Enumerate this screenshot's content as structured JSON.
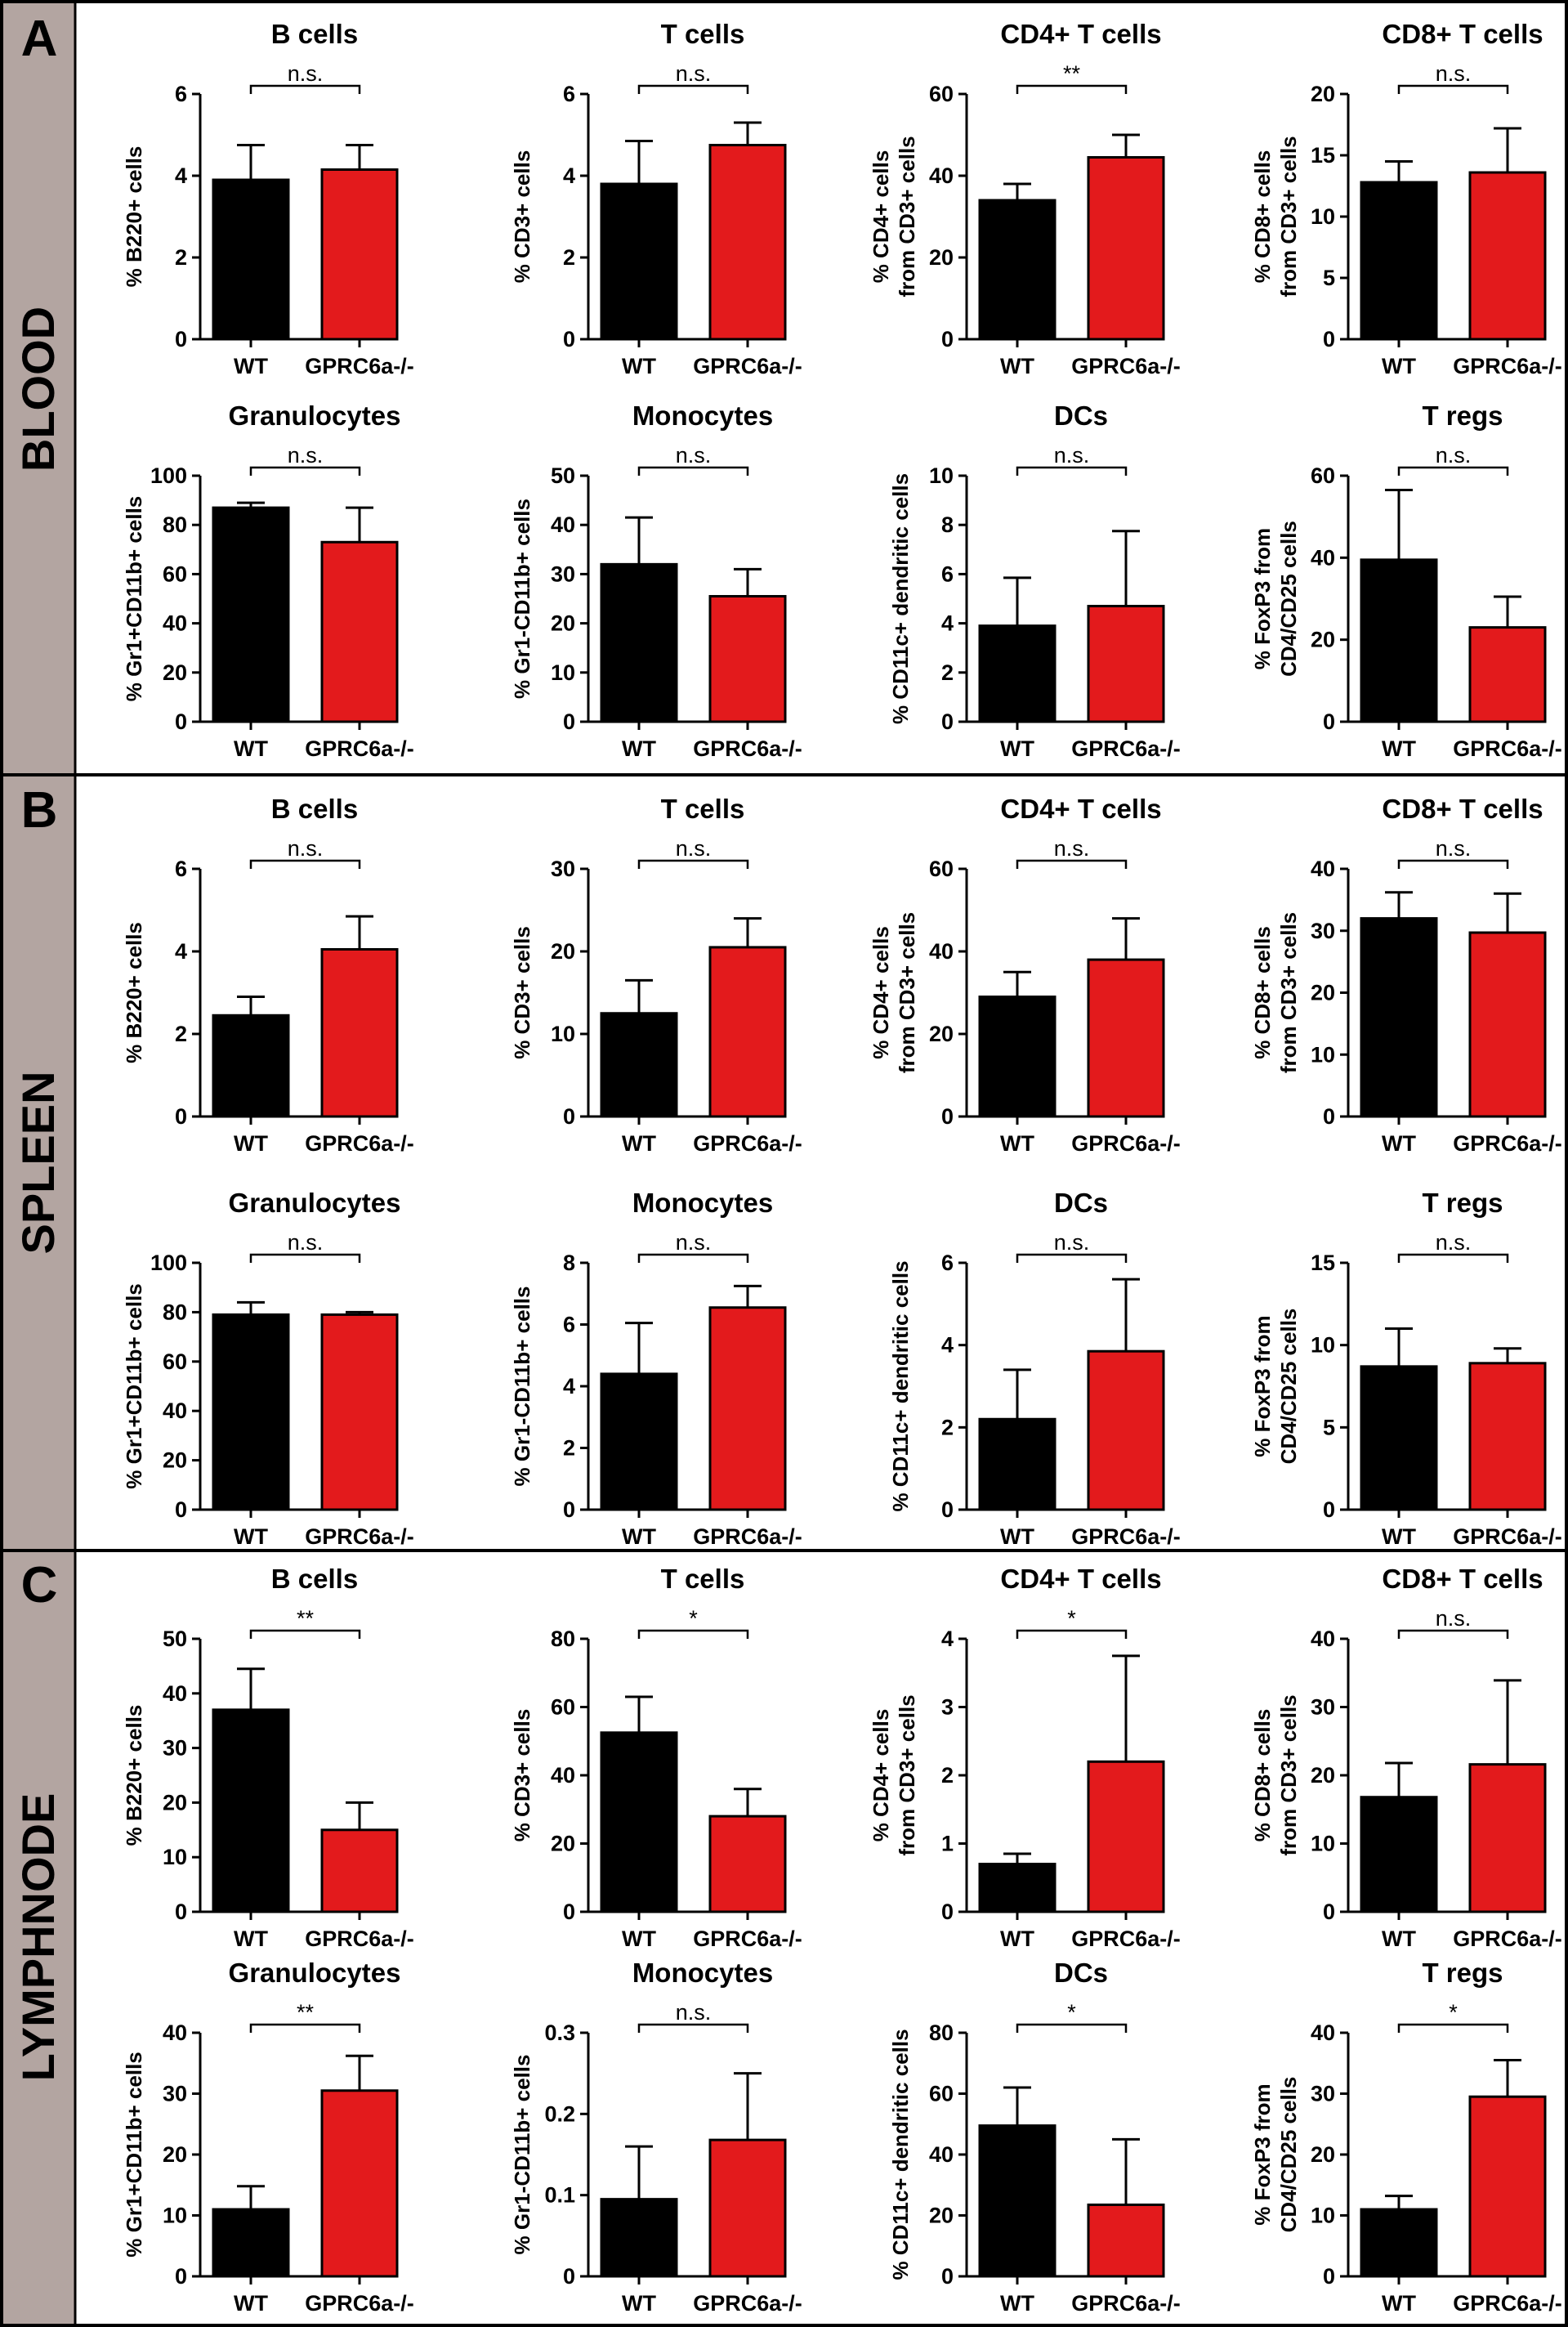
{
  "panels": [
    {
      "letter": "A",
      "tissue": "BLOOD"
    },
    {
      "letter": "B",
      "tissue": "SPLEEN"
    },
    {
      "letter": "C",
      "tissue": "LYMPHNODE"
    }
  ],
  "colors": {
    "wt": "#000000",
    "ko": "#e31a1c",
    "stripe": "#b3a5a1",
    "border": "#000000"
  },
  "chart_data": [
    {
      "type": "bar",
      "panel": "A",
      "title": "B cells",
      "ylabel": [
        "% B220+ cells"
      ],
      "categories": [
        "WT",
        "GPRC6a-/-"
      ],
      "values": [
        3.9,
        4.15
      ],
      "errors": [
        0.85,
        0.6
      ],
      "ylim": [
        0,
        6
      ],
      "yticks": [
        "0",
        "2",
        "4",
        "6"
      ],
      "sig": "n.s."
    },
    {
      "type": "bar",
      "panel": "A",
      "title": "T cells",
      "ylabel": [
        "% CD3+ cells"
      ],
      "categories": [
        "WT",
        "GPRC6a-/-"
      ],
      "values": [
        3.8,
        4.75
      ],
      "errors": [
        1.05,
        0.55
      ],
      "ylim": [
        0,
        6
      ],
      "yticks": [
        "0",
        "2",
        "4",
        "6"
      ],
      "sig": "n.s."
    },
    {
      "type": "bar",
      "panel": "A",
      "title": "CD4+ T cells",
      "ylabel": [
        "% CD4+ cells",
        "from CD3+ cells"
      ],
      "categories": [
        "WT",
        "GPRC6a-/-"
      ],
      "values": [
        34,
        44.5
      ],
      "errors": [
        4,
        5.5
      ],
      "ylim": [
        0,
        60
      ],
      "yticks": [
        "0",
        "20",
        "40",
        "60"
      ],
      "sig": "**"
    },
    {
      "type": "bar",
      "panel": "A",
      "title": "CD8+ T cells",
      "ylabel": [
        "% CD8+ cells",
        "from CD3+ cells"
      ],
      "categories": [
        "WT",
        "GPRC6a-/-"
      ],
      "values": [
        12.8,
        13.6
      ],
      "errors": [
        1.7,
        3.6
      ],
      "ylim": [
        0,
        20
      ],
      "yticks": [
        "0",
        "5",
        "10",
        "15",
        "20"
      ],
      "sig": "n.s."
    },
    {
      "type": "bar",
      "panel": "A",
      "title": "Granulocytes",
      "ylabel": [
        "% Gr1+CD11b+ cells"
      ],
      "categories": [
        "WT",
        "GPRC6a-/-"
      ],
      "values": [
        87,
        73
      ],
      "errors": [
        2,
        14
      ],
      "ylim": [
        0,
        100
      ],
      "yticks": [
        "0",
        "20",
        "40",
        "60",
        "80",
        "100"
      ],
      "sig": "n.s."
    },
    {
      "type": "bar",
      "panel": "A",
      "title": "Monocytes",
      "ylabel": [
        "% Gr1-CD11b+ cells"
      ],
      "categories": [
        "WT",
        "GPRC6a-/-"
      ],
      "values": [
        32,
        25.5
      ],
      "errors": [
        9.5,
        5.5
      ],
      "ylim": [
        0,
        50
      ],
      "yticks": [
        "0",
        "10",
        "20",
        "30",
        "40",
        "50"
      ],
      "sig": "n.s."
    },
    {
      "type": "bar",
      "panel": "A",
      "title": "DCs",
      "ylabel": [
        "% CD11c+ dendritic cells"
      ],
      "categories": [
        "WT",
        "GPRC6a-/-"
      ],
      "values": [
        3.9,
        4.7
      ],
      "errors": [
        1.95,
        3.05
      ],
      "ylim": [
        0,
        10
      ],
      "yticks": [
        "0",
        "2",
        "4",
        "6",
        "8",
        "10"
      ],
      "sig": "n.s."
    },
    {
      "type": "bar",
      "panel": "A",
      "title": "T regs",
      "ylabel": [
        "% FoxP3 from",
        "CD4/CD25 cells"
      ],
      "categories": [
        "WT",
        "GPRC6a-/-"
      ],
      "values": [
        39.5,
        23
      ],
      "errors": [
        17,
        7.5
      ],
      "ylim": [
        0,
        60
      ],
      "yticks": [
        "0",
        "20",
        "40",
        "60"
      ],
      "sig": "n.s."
    },
    {
      "type": "bar",
      "panel": "B",
      "title": "B cells",
      "ylabel": [
        "% B220+ cells"
      ],
      "categories": [
        "WT",
        "GPRC6a-/-"
      ],
      "values": [
        2.45,
        4.05
      ],
      "errors": [
        0.45,
        0.8
      ],
      "ylim": [
        0,
        6
      ],
      "yticks": [
        "0",
        "2",
        "4",
        "6"
      ],
      "sig": "n.s."
    },
    {
      "type": "bar",
      "panel": "B",
      "title": "T cells",
      "ylabel": [
        "% CD3+ cells"
      ],
      "categories": [
        "WT",
        "GPRC6a-/-"
      ],
      "values": [
        12.5,
        20.5
      ],
      "errors": [
        4,
        3.5
      ],
      "ylim": [
        0,
        30
      ],
      "yticks": [
        "0",
        "10",
        "20",
        "30"
      ],
      "sig": "n.s."
    },
    {
      "type": "bar",
      "panel": "B",
      "title": "CD4+ T cells",
      "ylabel": [
        "% CD4+ cells",
        "from CD3+ cells"
      ],
      "categories": [
        "WT",
        "GPRC6a-/-"
      ],
      "values": [
        29,
        38
      ],
      "errors": [
        6,
        10
      ],
      "ylim": [
        0,
        60
      ],
      "yticks": [
        "0",
        "20",
        "40",
        "60"
      ],
      "sig": "n.s."
    },
    {
      "type": "bar",
      "panel": "B",
      "title": "CD8+ T cells",
      "ylabel": [
        "% CD8+ cells",
        "from CD3+ cells"
      ],
      "categories": [
        "WT",
        "GPRC6a-/-"
      ],
      "values": [
        32,
        29.7
      ],
      "errors": [
        4.2,
        6.3
      ],
      "ylim": [
        0,
        40
      ],
      "yticks": [
        "0",
        "10",
        "20",
        "30",
        "40"
      ],
      "sig": "n.s."
    },
    {
      "type": "bar",
      "panel": "B",
      "title": "Granulocytes",
      "ylabel": [
        "% Gr1+CD11b+ cells"
      ],
      "categories": [
        "WT",
        "GPRC6a-/-"
      ],
      "values": [
        79,
        79
      ],
      "errors": [
        5,
        1
      ],
      "ylim": [
        0,
        100
      ],
      "yticks": [
        "0",
        "20",
        "40",
        "60",
        "80",
        "100"
      ],
      "sig": "n.s."
    },
    {
      "type": "bar",
      "panel": "B",
      "title": "Monocytes",
      "ylabel": [
        "% Gr1-CD11b+ cells"
      ],
      "categories": [
        "WT",
        "GPRC6a-/-"
      ],
      "values": [
        4.4,
        6.55
      ],
      "errors": [
        1.65,
        0.7
      ],
      "ylim": [
        0,
        8
      ],
      "yticks": [
        "0",
        "2",
        "4",
        "6",
        "8"
      ],
      "sig": "n.s."
    },
    {
      "type": "bar",
      "panel": "B",
      "title": "DCs",
      "ylabel": [
        "% CD11c+ dendritic cells"
      ],
      "categories": [
        "WT",
        "GPRC6a-/-"
      ],
      "values": [
        2.2,
        3.85
      ],
      "errors": [
        1.2,
        1.75
      ],
      "ylim": [
        0,
        6
      ],
      "yticks": [
        "0",
        "2",
        "4",
        "6"
      ],
      "sig": "n.s."
    },
    {
      "type": "bar",
      "panel": "B",
      "title": "T regs",
      "ylabel": [
        "% FoxP3 from",
        "CD4/CD25 cells"
      ],
      "categories": [
        "WT",
        "GPRC6a-/-"
      ],
      "values": [
        8.7,
        8.9
      ],
      "errors": [
        2.3,
        0.9
      ],
      "ylim": [
        0,
        15
      ],
      "yticks": [
        "0",
        "5",
        "10",
        "15"
      ],
      "sig": "n.s."
    },
    {
      "type": "bar",
      "panel": "C",
      "title": "B cells",
      "ylabel": [
        "% B220+ cells"
      ],
      "categories": [
        "WT",
        "GPRC6a-/-"
      ],
      "values": [
        37,
        15
      ],
      "errors": [
        7.5,
        5
      ],
      "ylim": [
        0,
        50
      ],
      "yticks": [
        "0",
        "10",
        "20",
        "30",
        "40",
        "50"
      ],
      "sig": "**"
    },
    {
      "type": "bar",
      "panel": "C",
      "title": "T cells",
      "ylabel": [
        "% CD3+ cells"
      ],
      "categories": [
        "WT",
        "GPRC6a-/-"
      ],
      "values": [
        52.5,
        28
      ],
      "errors": [
        10.5,
        8
      ],
      "ylim": [
        0,
        80
      ],
      "yticks": [
        "0",
        "20",
        "40",
        "60",
        "80"
      ],
      "sig": "*"
    },
    {
      "type": "bar",
      "panel": "C",
      "title": "CD4+ T cells",
      "ylabel": [
        "% CD4+ cells",
        "from CD3+ cells"
      ],
      "categories": [
        "WT",
        "GPRC6a-/-"
      ],
      "values": [
        0.7,
        2.2
      ],
      "errors": [
        0.15,
        1.55
      ],
      "ylim": [
        0,
        4
      ],
      "yticks": [
        "0",
        "1",
        "2",
        "3",
        "4"
      ],
      "sig": "*"
    },
    {
      "type": "bar",
      "panel": "C",
      "title": "CD8+ T cells",
      "ylabel": [
        "% CD8+ cells",
        "from CD3+ cells"
      ],
      "categories": [
        "WT",
        "GPRC6a-/-"
      ],
      "values": [
        16.8,
        21.6
      ],
      "errors": [
        5,
        12.3
      ],
      "ylim": [
        0,
        40
      ],
      "yticks": [
        "0",
        "10",
        "20",
        "30",
        "40"
      ],
      "sig": "n.s."
    },
    {
      "type": "bar",
      "panel": "C",
      "title": "Granulocytes",
      "ylabel": [
        "% Gr1+CD11b+ cells"
      ],
      "categories": [
        "WT",
        "GPRC6a-/-"
      ],
      "values": [
        11,
        30.5
      ],
      "errors": [
        3.8,
        5.7
      ],
      "ylim": [
        0,
        40
      ],
      "yticks": [
        "0",
        "10",
        "20",
        "30",
        "40"
      ],
      "sig": "**"
    },
    {
      "type": "bar",
      "panel": "C",
      "title": "Monocytes",
      "ylabel": [
        "% Gr1-CD11b+ cells"
      ],
      "categories": [
        "WT",
        "GPRC6a-/-"
      ],
      "values": [
        0.095,
        0.168
      ],
      "errors": [
        0.065,
        0.082
      ],
      "ylim": [
        0,
        0.3
      ],
      "yticks": [
        "0",
        "0.1",
        "0.2",
        "0.3"
      ],
      "sig": "n.s."
    },
    {
      "type": "bar",
      "panel": "C",
      "title": "DCs",
      "ylabel": [
        "% CD11c+ dendritic cells"
      ],
      "categories": [
        "WT",
        "GPRC6a-/-"
      ],
      "values": [
        49.5,
        23.5
      ],
      "errors": [
        12.5,
        21.5
      ],
      "ylim": [
        0,
        80
      ],
      "yticks": [
        "0",
        "20",
        "40",
        "60",
        "80"
      ],
      "sig": "*"
    },
    {
      "type": "bar",
      "panel": "C",
      "title": "T regs",
      "ylabel": [
        "% FoxP3 from",
        "CD4/CD25 cells"
      ],
      "categories": [
        "WT",
        "GPRC6a-/-"
      ],
      "values": [
        11,
        29.5
      ],
      "errors": [
        2.2,
        6
      ],
      "ylim": [
        0,
        40
      ],
      "yticks": [
        "0",
        "10",
        "20",
        "30",
        "40"
      ],
      "sig": "*"
    }
  ]
}
